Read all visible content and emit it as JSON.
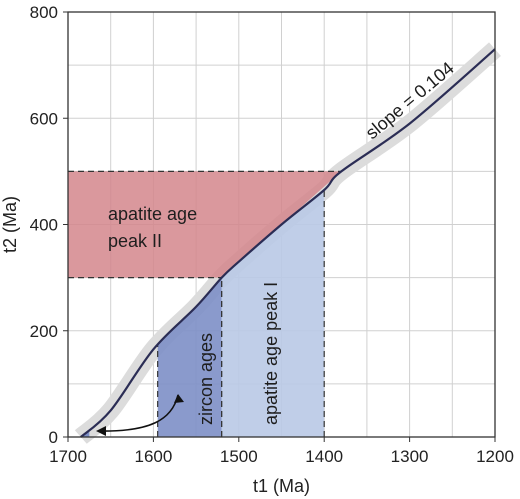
{
  "chart_data": {
    "type": "line",
    "xlabel": "t1 (Ma)",
    "ylabel": "t2 (Ma)",
    "xlim": [
      1700,
      1200
    ],
    "ylim": [
      0,
      800
    ],
    "x_ticks": [
      "1700",
      "1600",
      "1500",
      "1400",
      "1300",
      "1200"
    ],
    "y_ticks": [
      "0",
      "200",
      "400",
      "600",
      "800"
    ],
    "x_tick_values": [
      1700,
      1600,
      1500,
      1400,
      1300,
      1200
    ],
    "y_tick_values": [
      0,
      200,
      400,
      600,
      800
    ],
    "grid": true,
    "curve": {
      "label": "slope = 0.104",
      "points": [
        [
          1685,
          0
        ],
        [
          1650,
          50
        ],
        [
          1600,
          165
        ],
        [
          1550,
          245
        ],
        [
          1520,
          300
        ],
        [
          1500,
          330
        ],
        [
          1450,
          400
        ],
        [
          1400,
          465
        ],
        [
          1380,
          500
        ],
        [
          1300,
          590
        ],
        [
          1200,
          730
        ]
      ]
    },
    "band_halfwidth": 18,
    "regions": [
      {
        "label_lines": [
          "apatite age",
          "peak II"
        ],
        "color": "#d4868c",
        "kind": "horizontal",
        "y_range": [
          300,
          500
        ],
        "x_from": 1700
      },
      {
        "label": "zircon ages",
        "color": "#7d8fc6",
        "kind": "vertical",
        "x_range": [
          1595,
          1520
        ]
      },
      {
        "label": "apatite age peak I",
        "color": "#b9c9e6",
        "kind": "vertical",
        "x_range": [
          1520,
          1400
        ]
      }
    ],
    "colors": {
      "curve": "#2b2d55",
      "band": "#dcdcdc",
      "grid": "#d0d0d0",
      "dashed": "#333333"
    }
  }
}
